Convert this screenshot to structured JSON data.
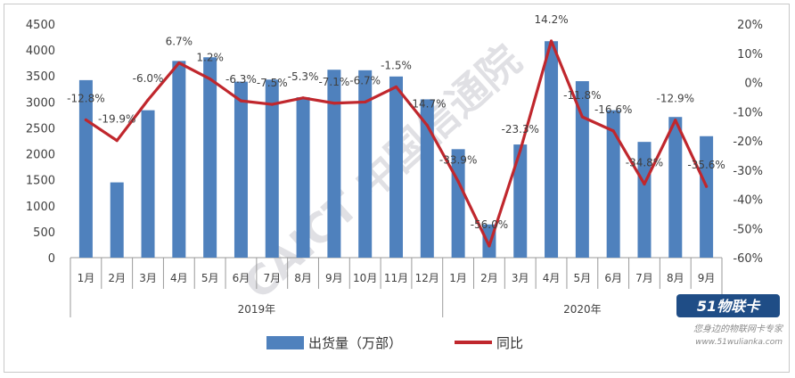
{
  "chart_data": {
    "type": "bar+line",
    "years": [
      "2019年",
      "2020年"
    ],
    "categories": [
      "1月",
      "2月",
      "3月",
      "4月",
      "5月",
      "6月",
      "7月",
      "8月",
      "9月",
      "10月",
      "11月",
      "12月",
      "1月",
      "2月",
      "3月",
      "4月",
      "5月",
      "6月",
      "7月",
      "8月",
      "9月"
    ],
    "series": [
      {
        "name": "出货量（万部）",
        "type": "bar",
        "axis": "left",
        "color": "#4f81bd",
        "values": [
          3420,
          1450,
          2840,
          3790,
          3860,
          3390,
          3430,
          3090,
          3620,
          3610,
          3490,
          3050,
          2090,
          640,
          2180,
          4170,
          3400,
          2840,
          2230,
          2710,
          2340
        ]
      },
      {
        "name": "同比",
        "type": "line",
        "axis": "right",
        "color": "#c0272d",
        "values": [
          -12.8,
          -19.9,
          -6.0,
          6.7,
          1.2,
          -6.3,
          -7.5,
          -5.3,
          -7.1,
          -6.7,
          -1.5,
          -14.7,
          -33.9,
          -56.0,
          -23.3,
          14.2,
          -11.8,
          -16.6,
          -34.8,
          -12.9,
          -35.6
        ],
        "labels": [
          "-12.8%",
          "-19.9%",
          "-6.0%",
          "6.7%",
          "1.2%",
          "-6.3%",
          "-7.5%",
          "-5.3%",
          "-7.1%",
          "-6.7%",
          "-1.5%",
          "-14.7%",
          "-33.9%",
          "-56.0%",
          "-23.3%",
          "14.2%",
          "-11.8%",
          "-16.6%",
          "-34.8%",
          "-12.9%",
          "-35.6%"
        ]
      }
    ],
    "left_axis": {
      "min": 0,
      "max": 4500,
      "step": 500,
      "ticks": [
        "0",
        "500",
        "1000",
        "1500",
        "2000",
        "2500",
        "3000",
        "3500",
        "4000",
        "4500"
      ]
    },
    "right_axis": {
      "min": -60,
      "max": 20,
      "step": 10,
      "ticks": [
        "-60%",
        "-50%",
        "-40%",
        "-30%",
        "-20%",
        "-10%",
        "0%",
        "10%",
        "20%"
      ]
    },
    "grid": false,
    "legend_position": "bottom"
  },
  "watermark": {
    "text": "CAICT 中国信通院",
    "brand": "51物联卡",
    "tagline": "您身边的物联网卡专家",
    "site": "www.51wulianka.com"
  }
}
